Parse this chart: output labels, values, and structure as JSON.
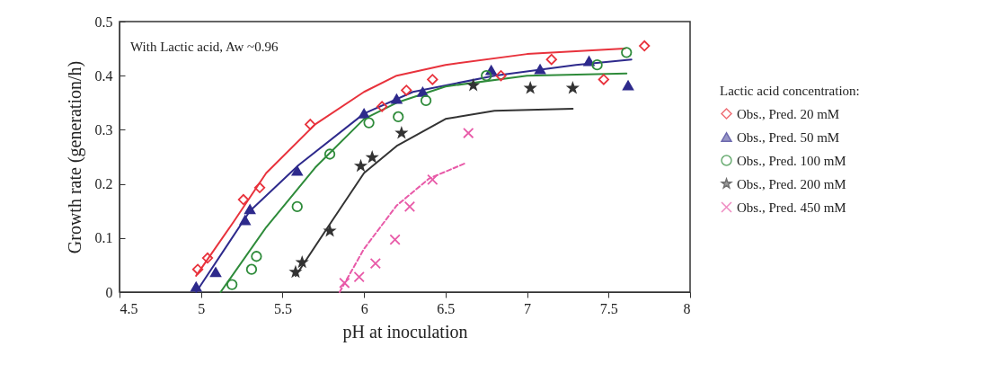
{
  "chart_data": {
    "type": "scatter",
    "xlabel": "pH at inoculation",
    "ylabel": "Growth rate (generation/h)",
    "legend_title": "Lactic acid concentration:",
    "annotations": [
      "With Lactic acid, Aw ~0.96"
    ],
    "xlim": [
      4.5,
      8
    ],
    "ylim": [
      0,
      0.5
    ],
    "xticks": [
      4.5,
      5,
      5.5,
      6,
      6.5,
      7,
      7.5,
      8
    ],
    "yticks": [
      0,
      0.1,
      0.2,
      0.3,
      0.4,
      0.5
    ],
    "grid": false,
    "legend": "right",
    "series": [
      {
        "name": "Obs., Pred. 20 mM",
        "marker": "diamond",
        "color": "#e8323c",
        "x": [
          4.98,
          5.04,
          5.26,
          5.36,
          5.67,
          6.11,
          6.26,
          6.42,
          6.84,
          7.15,
          7.47,
          7.72
        ],
        "values": [
          0.042,
          0.063,
          0.171,
          0.193,
          0.31,
          0.343,
          0.373,
          0.393,
          0.4,
          0.43,
          0.393,
          0.455
        ]
      },
      {
        "name": "Obs., Pred. 50 mM",
        "marker": "triangle",
        "color": "#2e2a8c",
        "x": [
          4.97,
          5.09,
          5.27,
          5.3,
          5.59,
          6.0,
          6.2,
          6.36,
          6.78,
          7.08,
          7.38,
          7.62
        ],
        "values": [
          0.01,
          0.037,
          0.133,
          0.153,
          0.224,
          0.33,
          0.357,
          0.37,
          0.41,
          0.412,
          0.427,
          0.382
        ]
      },
      {
        "name": "Obs., Pred. 100 mM",
        "marker": "circle",
        "color": "#2e8b3a",
        "x": [
          5.19,
          5.31,
          5.34,
          5.59,
          5.79,
          6.03,
          6.21,
          6.38,
          6.75,
          7.43,
          7.61
        ],
        "values": [
          0.014,
          0.042,
          0.066,
          0.158,
          0.255,
          0.313,
          0.324,
          0.354,
          0.4,
          0.42,
          0.443
        ]
      },
      {
        "name": "Obs., Pred. 200 mM",
        "marker": "star",
        "color": "#333333",
        "x": [
          5.58,
          5.62,
          5.79,
          5.98,
          6.05,
          6.23,
          6.67,
          7.02,
          7.28
        ],
        "values": [
          0.037,
          0.055,
          0.113,
          0.233,
          0.249,
          0.294,
          0.382,
          0.377,
          0.377
        ]
      },
      {
        "name": "Obs., Pred. 450 mM",
        "marker": "cross",
        "color": "#e85aa8",
        "x": [
          5.88,
          5.97,
          6.07,
          6.19,
          6.28,
          6.42,
          6.64
        ],
        "values": [
          0.017,
          0.028,
          0.053,
          0.097,
          0.158,
          0.208,
          0.294
        ]
      },
      {
        "type": "line",
        "line_style": "solid",
        "color": "#e8323c",
        "x": [
          4.97,
          5.2,
          5.4,
          5.7,
          6.0,
          6.2,
          6.5,
          7.0,
          7.6
        ],
        "values": [
          0.03,
          0.13,
          0.22,
          0.31,
          0.37,
          0.4,
          0.42,
          0.44,
          0.45
        ]
      },
      {
        "type": "line",
        "line_style": "solid",
        "color": "#2e2a8c",
        "x": [
          4.97,
          5.3,
          5.6,
          6.0,
          6.3,
          6.8,
          7.3,
          7.64
        ],
        "values": [
          0.0,
          0.15,
          0.235,
          0.33,
          0.37,
          0.4,
          0.42,
          0.43
        ]
      },
      {
        "type": "line",
        "line_style": "solid",
        "color": "#2e8b3a",
        "x": [
          5.12,
          5.4,
          5.7,
          6.0,
          6.2,
          6.5,
          7.0,
          7.61
        ],
        "values": [
          0.0,
          0.12,
          0.23,
          0.32,
          0.35,
          0.38,
          0.4,
          0.404
        ]
      },
      {
        "type": "line",
        "line_style": "solid",
        "color": "#333333",
        "x": [
          5.58,
          5.8,
          6.0,
          6.2,
          6.5,
          6.8,
          7.28
        ],
        "values": [
          0.03,
          0.13,
          0.22,
          0.27,
          0.32,
          0.335,
          0.339
        ]
      },
      {
        "type": "line",
        "line_style": "dashed",
        "color": "#e85aa8",
        "x": [
          5.85,
          6.0,
          6.2,
          6.4,
          6.62
        ],
        "values": [
          0.0,
          0.08,
          0.16,
          0.21,
          0.238
        ]
      }
    ]
  }
}
